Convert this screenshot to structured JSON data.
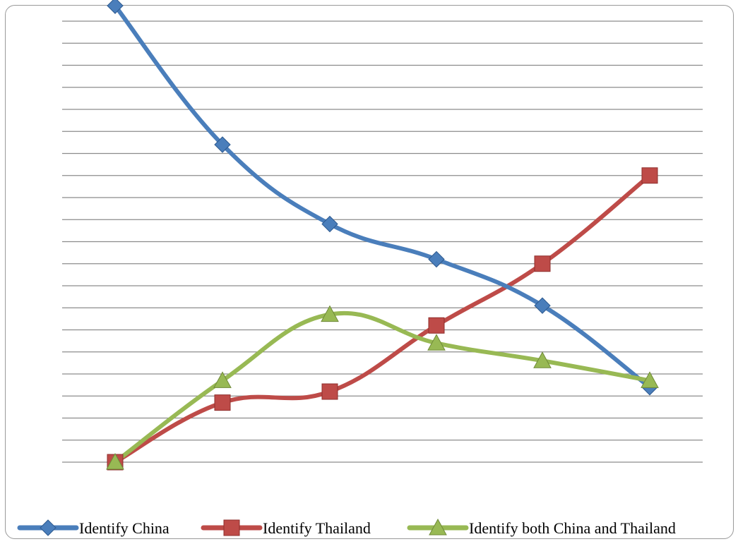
{
  "chart_data": {
    "type": "line",
    "title": "",
    "xlabel": "",
    "ylabel": "",
    "x": [
      1,
      2,
      3,
      4,
      5,
      6
    ],
    "ylim": [
      0,
      20
    ],
    "grid": true,
    "legend_position": "bottom",
    "series": [
      {
        "name": "Identify China",
        "values": [
          20.7,
          14.4,
          10.8,
          9.2,
          7.1,
          3.4
        ],
        "color": "#4a7ebb",
        "marker": "diamond"
      },
      {
        "name": "Identify Thailand",
        "values": [
          0,
          2.7,
          3.2,
          6.2,
          9.0,
          13.0
        ],
        "color": "#be4b48",
        "marker": "square"
      },
      {
        "name": "Identify both China and Thailand",
        "values": [
          0,
          3.7,
          6.7,
          5.4,
          4.6,
          3.7
        ],
        "color": "#98b954",
        "marker": "triangle"
      }
    ]
  }
}
